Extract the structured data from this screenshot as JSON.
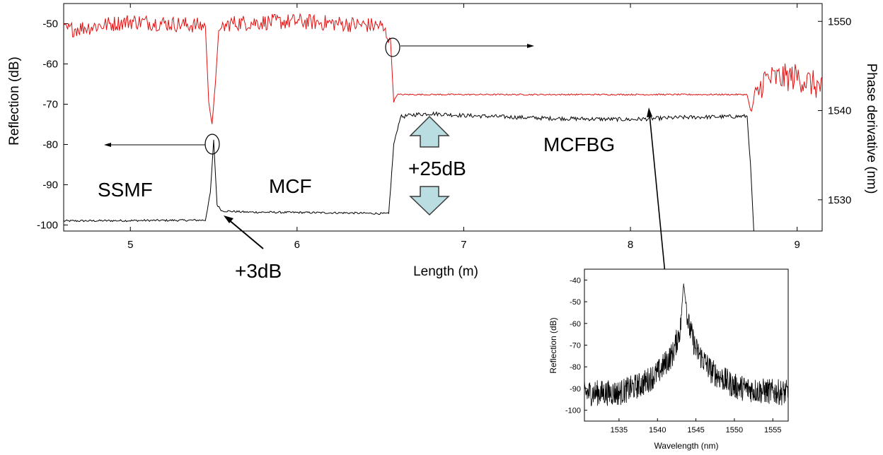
{
  "chart_data": [
    {
      "type": "line",
      "xlabel": "Length (m)",
      "ylabel": "Reflection (dB)",
      "y2label": "Phase derivative (nm)",
      "xlim": [
        4.6,
        9.15
      ],
      "ylim": [
        -101.5,
        -45
      ],
      "y2lim": [
        1526.5,
        1552
      ],
      "x_ticks": [
        "5",
        "6",
        "7",
        "8",
        "9"
      ],
      "x_tick_values": [
        5,
        6,
        7,
        8,
        9
      ],
      "y_ticks": [
        "-50",
        "-60",
        "-70",
        "-80",
        "-90",
        "-100"
      ],
      "y_tick_values": [
        -50,
        -60,
        -70,
        -80,
        -90,
        -100
      ],
      "y2_ticks": [
        "1550",
        "1540",
        "1530"
      ],
      "y2_tick_values": [
        1550,
        1540,
        1530
      ],
      "grid": false,
      "series": [
        {
          "color": "#000000",
          "axis": "left",
          "x": [
            4.6,
            5.45,
            5.48,
            5.5,
            5.52,
            5.55,
            5.7,
            6.0,
            6.3,
            6.55,
            6.58,
            6.62,
            6.7,
            6.8,
            7.0,
            7.5,
            8.0,
            8.3,
            8.7,
            8.72,
            8.74
          ],
          "y": [
            -99.0,
            -98.8,
            -92.0,
            -79.0,
            -95.0,
            -96.5,
            -96.8,
            -96.9,
            -97.0,
            -97.2,
            -80.0,
            -73.2,
            -72.6,
            -72.3,
            -72.8,
            -73.5,
            -73.8,
            -73.3,
            -73.0,
            -85.0,
            -101.5
          ]
        },
        {
          "color": "#e01010",
          "axis": "right",
          "x": [
            4.6,
            5.0,
            5.45,
            5.47,
            5.49,
            5.51,
            5.53,
            5.6,
            6.0,
            6.5,
            6.56,
            6.58,
            6.6,
            7.0,
            8.0,
            8.7,
            8.72,
            8.8,
            9.0,
            9.15
          ],
          "y": [
            1549.0,
            1550.0,
            1549.5,
            1541.0,
            1538.5,
            1543.0,
            1549.0,
            1549.8,
            1550.0,
            1549.5,
            1548.0,
            1541.0,
            1541.8,
            1541.8,
            1541.8,
            1541.8,
            1540.0,
            1543.5,
            1543.8,
            1542.5
          ]
        }
      ],
      "annotations": [
        "SSMF",
        "MCF",
        "+3dB",
        "+25dB",
        "MCFBG"
      ]
    },
    {
      "type": "line",
      "xlabel": "Wavelength (nm)",
      "ylabel": "Reflection (dB)",
      "xlim": [
        1530.5,
        1557
      ],
      "ylim": [
        -105,
        -35
      ],
      "x_ticks": [
        "1535",
        "1540",
        "1545",
        "1550",
        "1555"
      ],
      "x_tick_values": [
        1535,
        1540,
        1545,
        1550,
        1555
      ],
      "y_ticks": [
        "-40",
        "-50",
        "-60",
        "-70",
        "-80",
        "-90",
        "-100"
      ],
      "y_tick_values": [
        -40,
        -50,
        -60,
        -70,
        -80,
        -90,
        -100
      ],
      "series": [
        {
          "color": "#000000",
          "x": [
            1530.5,
            1535,
            1538,
            1540,
            1542,
            1543,
            1543.4,
            1544,
            1545,
            1547,
            1550,
            1553,
            1557
          ],
          "y": [
            -92,
            -92,
            -88,
            -83,
            -74,
            -62,
            -41,
            -60,
            -72,
            -82,
            -89,
            -91,
            -92
          ]
        }
      ]
    }
  ],
  "annotations": {
    "ssmf": "SSMF",
    "mcf": "MCF",
    "plus3": "+3dB",
    "plus25": "+25dB",
    "mcfbg": "MCFBG"
  },
  "colors": {
    "red_trace": "#e01010",
    "black_trace": "#000000",
    "arrow_fill": "#b9dde0",
    "arrow_stroke": "#3a3a3a"
  }
}
